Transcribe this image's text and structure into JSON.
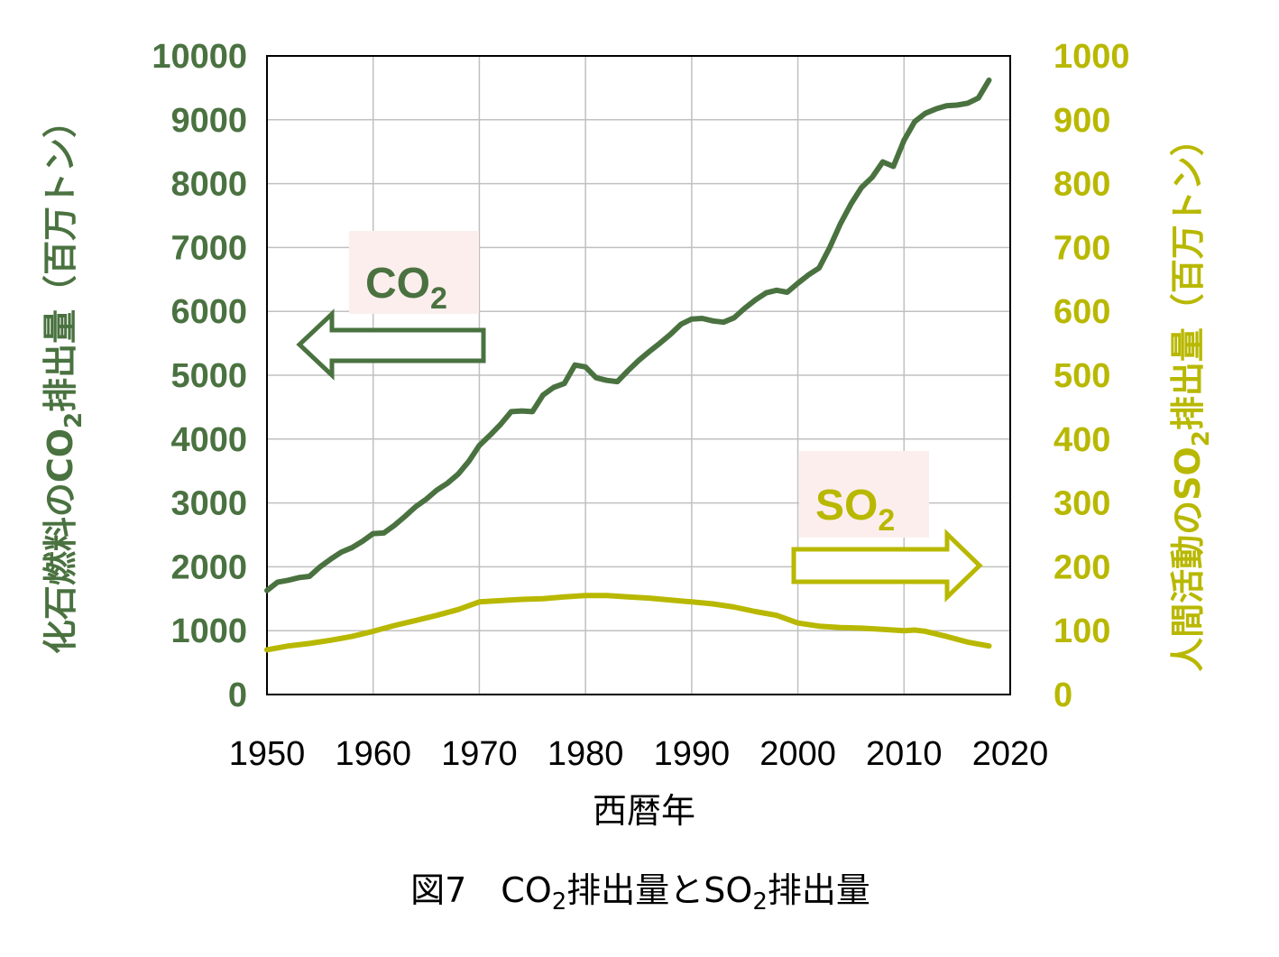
{
  "colors": {
    "co2": "#4a7240",
    "so2": "#b8b800",
    "grid": "#c0c0c0",
    "label_bg": "#fdeeee"
  },
  "x_axis": {
    "title": "西暦年",
    "ticks": [
      "1950",
      "1960",
      "1970",
      "1980",
      "1990",
      "2000",
      "2010",
      "2020"
    ]
  },
  "y_left": {
    "title_main": "化石燃料のCO",
    "title_sub": "2",
    "title_tail": "排出量（百万トン）",
    "ticks": [
      "0",
      "1000",
      "2000",
      "3000",
      "4000",
      "5000",
      "6000",
      "7000",
      "8000",
      "9000",
      "10000"
    ]
  },
  "y_right": {
    "title_main": "人間活動のSO",
    "title_sub": "2",
    "title_tail": "排出量（百万トン）",
    "ticks": [
      "0",
      "100",
      "200",
      "300",
      "400",
      "500",
      "600",
      "700",
      "800",
      "900",
      "1000"
    ]
  },
  "annotations": {
    "co2_main": "CO",
    "co2_sub": "2",
    "so2_main": "SO",
    "so2_sub": "2"
  },
  "caption": {
    "prefix": "図7　CO",
    "sub1": "2",
    "mid": "排出量とSO",
    "sub2": "2",
    "tail": "排出量"
  },
  "chart_data": {
    "type": "line",
    "x_range": [
      1950,
      2020
    ],
    "y_left_range": [
      0,
      10000
    ],
    "y_right_range": [
      0,
      1000
    ],
    "grid": true,
    "series": [
      {
        "name": "CO2",
        "axis": "left",
        "x": [
          1950,
          1951,
          1952,
          1953,
          1954,
          1955,
          1956,
          1957,
          1958,
          1959,
          1960,
          1961,
          1962,
          1963,
          1964,
          1965,
          1966,
          1967,
          1968,
          1969,
          1970,
          1971,
          1972,
          1973,
          1974,
          1975,
          1976,
          1977,
          1978,
          1979,
          1980,
          1981,
          1982,
          1983,
          1984,
          1985,
          1986,
          1987,
          1988,
          1989,
          1990,
          1991,
          1992,
          1993,
          1994,
          1995,
          1996,
          1997,
          1998,
          1999,
          2000,
          2001,
          2002,
          2003,
          2004,
          2005,
          2006,
          2007,
          2008,
          2009,
          2010,
          2011,
          2012,
          2013,
          2014,
          2015,
          2016,
          2017,
          2018
        ],
        "values": [
          1630,
          1760,
          1790,
          1830,
          1850,
          2000,
          2120,
          2230,
          2300,
          2400,
          2520,
          2530,
          2650,
          2790,
          2940,
          3060,
          3200,
          3310,
          3450,
          3650,
          3900,
          4060,
          4230,
          4430,
          4440,
          4430,
          4690,
          4810,
          4870,
          5160,
          5130,
          4960,
          4920,
          4900,
          5070,
          5230,
          5370,
          5500,
          5640,
          5800,
          5880,
          5890,
          5850,
          5830,
          5900,
          6050,
          6180,
          6290,
          6330,
          6300,
          6440,
          6570,
          6680,
          7000,
          7370,
          7680,
          7940,
          8100,
          8340,
          8270,
          8680,
          8970,
          9100,
          9170,
          9220,
          9230,
          9260,
          9340,
          9620
        ]
      },
      {
        "name": "SO2",
        "axis": "right",
        "x": [
          1950,
          1952,
          1954,
          1956,
          1958,
          1960,
          1962,
          1964,
          1966,
          1968,
          1970,
          1972,
          1974,
          1976,
          1978,
          1980,
          1982,
          1984,
          1986,
          1988,
          1990,
          1992,
          1994,
          1996,
          1998,
          2000,
          2002,
          2004,
          2006,
          2008,
          2010,
          2011,
          2012,
          2014,
          2016,
          2018
        ],
        "values": [
          70,
          76,
          80,
          85,
          91,
          99,
          108,
          116,
          124,
          133,
          145,
          147,
          149,
          150,
          153,
          155,
          155,
          153,
          151,
          148,
          145,
          142,
          137,
          130,
          124,
          112,
          107,
          105,
          104,
          102,
          100,
          101,
          99,
          91,
          82,
          76
        ]
      }
    ]
  }
}
